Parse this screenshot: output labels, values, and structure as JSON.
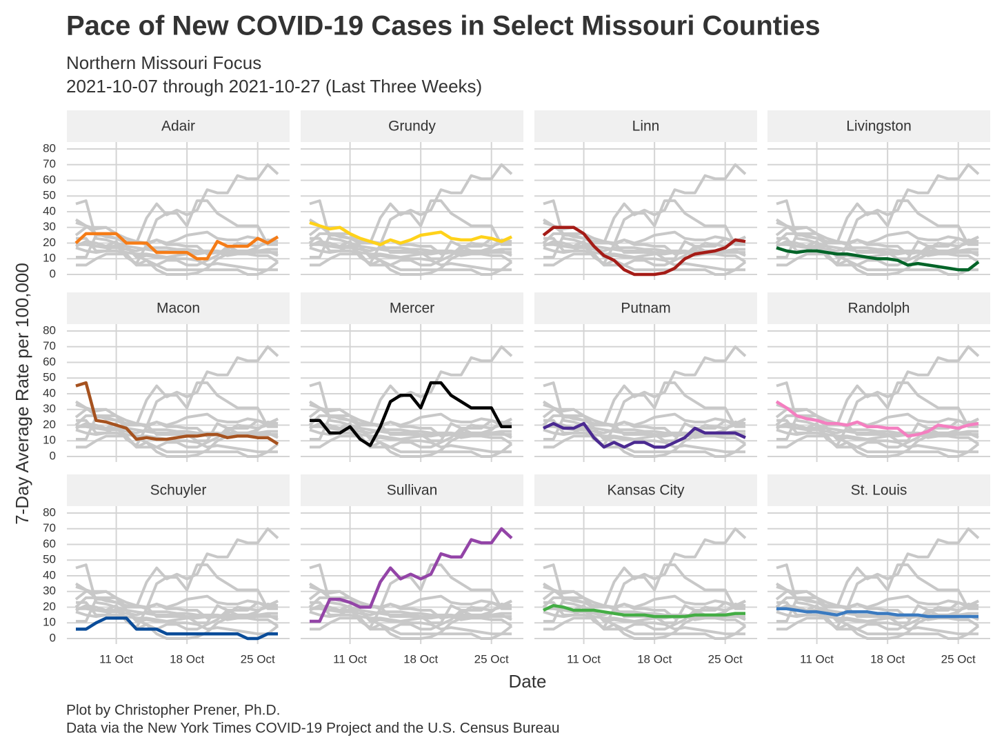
{
  "chart_data": {
    "type": "line",
    "title": "Pace of New COVID-19 Cases in Select Missouri Counties",
    "subtitle": "Northern Missouri Focus",
    "subtitle2": "2021-10-07 through 2021-10-27 (Last Three Weeks)",
    "ylabel": "7-Day Average Rate per 100,000",
    "xlabel": "Date",
    "caption": "Plot by Christopher Prener, Ph.D.",
    "caption2": "Data via the New York Times COVID-19 Project and the U.S. Census Bureau",
    "x": [
      "2021-10-07",
      "2021-10-08",
      "2021-10-09",
      "2021-10-10",
      "2021-10-11",
      "2021-10-12",
      "2021-10-13",
      "2021-10-14",
      "2021-10-15",
      "2021-10-16",
      "2021-10-17",
      "2021-10-18",
      "2021-10-19",
      "2021-10-20",
      "2021-10-21",
      "2021-10-22",
      "2021-10-23",
      "2021-10-24",
      "2021-10-25",
      "2021-10-26",
      "2021-10-27"
    ],
    "xlim": [
      "2021-10-07",
      "2021-10-27"
    ],
    "xticks": [
      {
        "value": "2021-10-11",
        "label": "11 Oct"
      },
      {
        "value": "2021-10-18",
        "label": "18 Oct"
      },
      {
        "value": "2021-10-25",
        "label": "25 Oct"
      }
    ],
    "ylim": [
      0,
      80
    ],
    "yticks": [
      0,
      10,
      20,
      30,
      40,
      50,
      60,
      70,
      80
    ],
    "grid": true,
    "context_color": "#c8c8c8",
    "series": [
      {
        "name": "Adair",
        "color": "#f57c17",
        "values": [
          20,
          26,
          26,
          26,
          26,
          20,
          20,
          20,
          14,
          14,
          14,
          14,
          10,
          10,
          21,
          18,
          18,
          18,
          23,
          20,
          24
        ]
      },
      {
        "name": "Grundy",
        "color": "#ffd21a",
        "values": [
          33,
          31,
          29,
          30,
          26,
          23,
          21,
          19,
          22,
          20,
          22,
          25,
          26,
          27,
          23,
          22,
          22,
          24,
          23,
          21,
          24
        ]
      },
      {
        "name": "Linn",
        "color": "#a51c17",
        "values": [
          25,
          30,
          30,
          30,
          26,
          18,
          12,
          9,
          3,
          0,
          0,
          0,
          1,
          4,
          10,
          13,
          14,
          15,
          17,
          22,
          21
        ]
      },
      {
        "name": "Livingston",
        "color": "#006428",
        "values": [
          17,
          15,
          14,
          15,
          15,
          14,
          13,
          13,
          12,
          11,
          10,
          10,
          9,
          6,
          7,
          6,
          5,
          4,
          3,
          3,
          8
        ]
      },
      {
        "name": "Macon",
        "color": "#a6521f",
        "values": [
          45,
          47,
          23,
          22,
          20,
          18,
          11,
          12,
          11,
          11,
          12,
          13,
          13,
          14,
          14,
          12,
          13,
          13,
          12,
          12,
          8
        ]
      },
      {
        "name": "Mercer",
        "color": "#000000",
        "values": [
          23,
          23,
          15,
          15,
          19,
          11,
          7,
          19,
          35,
          39,
          39,
          31,
          47,
          47,
          39,
          35,
          31,
          31,
          31,
          19,
          19
        ]
      },
      {
        "name": "Putnam",
        "color": "#4b2a91",
        "values": [
          18,
          21,
          18,
          18,
          21,
          12,
          6,
          9,
          6,
          9,
          9,
          6,
          6,
          9,
          12,
          18,
          15,
          15,
          15,
          15,
          12
        ]
      },
      {
        "name": "Randolph",
        "color": "#f47fc0",
        "values": [
          35,
          31,
          26,
          24,
          23,
          21,
          21,
          20,
          22,
          19,
          19,
          18,
          18,
          13,
          14,
          16,
          20,
          19,
          18,
          20,
          21
        ]
      },
      {
        "name": "Schuyler",
        "color": "#0a4c99",
        "values": [
          6,
          6,
          10,
          13,
          13,
          13,
          6,
          6,
          6,
          3,
          3,
          3,
          3,
          3,
          3,
          3,
          3,
          0,
          0,
          3,
          3
        ]
      },
      {
        "name": "Sullivan",
        "color": "#9344a7",
        "values": [
          11,
          11,
          25,
          25,
          23,
          20,
          20,
          36,
          45,
          38,
          41,
          38,
          41,
          54,
          52,
          52,
          63,
          61,
          61,
          70,
          64
        ]
      },
      {
        "name": "Kansas City",
        "color": "#44ad45",
        "values": [
          18,
          21,
          20,
          18,
          18,
          18,
          17,
          16,
          15,
          15,
          15,
          14,
          14,
          14,
          14,
          15,
          15,
          15,
          15,
          16,
          16
        ]
      },
      {
        "name": "St. Louis",
        "color": "#3a7ac0",
        "values": [
          19,
          19,
          18,
          17,
          17,
          16,
          15,
          17,
          17,
          17,
          16,
          16,
          15,
          15,
          15,
          14,
          14,
          14,
          14,
          14,
          14
        ]
      }
    ]
  }
}
